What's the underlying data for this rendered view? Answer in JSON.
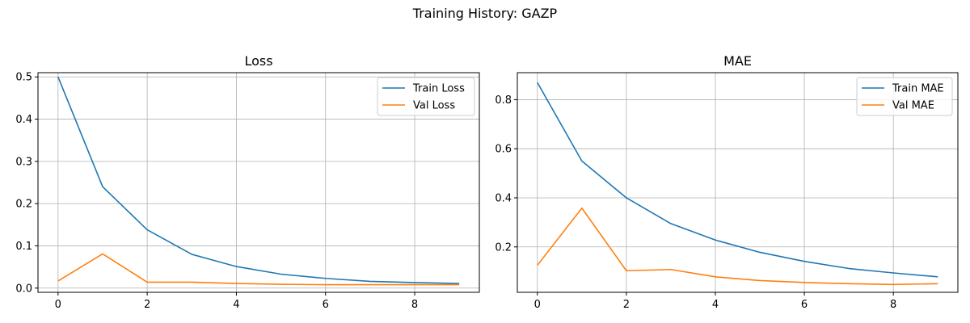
{
  "figure": {
    "suptitle": "Training History: GAZP"
  },
  "chart_data": [
    {
      "type": "line",
      "title": "Loss",
      "xlabel": "",
      "ylabel": "",
      "x": [
        0,
        1,
        2,
        3,
        4,
        5,
        6,
        7,
        8,
        9
      ],
      "xlim": [
        -0.45,
        9.45
      ],
      "ylim": [
        -0.01,
        0.51
      ],
      "xticks": [
        0,
        2,
        4,
        6,
        8
      ],
      "yticks": [
        0.0,
        0.1,
        0.2,
        0.3,
        0.4,
        0.5
      ],
      "ytick_labels": [
        "0.0",
        "0.1",
        "0.2",
        "0.3",
        "0.4",
        "0.5"
      ],
      "grid": true,
      "legend_position": "top-right",
      "series": [
        {
          "name": "Train Loss",
          "color": "#1f77b4",
          "values": [
            0.5,
            0.24,
            0.138,
            0.08,
            0.051,
            0.033,
            0.023,
            0.016,
            0.013,
            0.011
          ]
        },
        {
          "name": "Val Loss",
          "color": "#ff7f0e",
          "values": [
            0.017,
            0.081,
            0.014,
            0.014,
            0.011,
            0.009,
            0.008,
            0.008,
            0.008,
            0.008
          ]
        }
      ]
    },
    {
      "type": "line",
      "title": "MAE",
      "xlabel": "",
      "ylabel": "",
      "x": [
        0,
        1,
        2,
        3,
        4,
        5,
        6,
        7,
        8,
        9
      ],
      "xlim": [
        -0.45,
        9.45
      ],
      "ylim": [
        0.015,
        0.91
      ],
      "xticks": [
        0,
        2,
        4,
        6,
        8
      ],
      "yticks": [
        0.2,
        0.4,
        0.6,
        0.8
      ],
      "ytick_labels": [
        "0.2",
        "0.4",
        "0.6",
        "0.8"
      ],
      "grid": true,
      "legend_position": "top-right",
      "series": [
        {
          "name": "Train MAE",
          "color": "#1f77b4",
          "values": [
            0.87,
            0.55,
            0.4,
            0.295,
            0.228,
            0.178,
            0.141,
            0.112,
            0.094,
            0.078
          ]
        },
        {
          "name": "Val MAE",
          "color": "#ff7f0e",
          "values": [
            0.125,
            0.358,
            0.103,
            0.108,
            0.078,
            0.063,
            0.055,
            0.05,
            0.047,
            0.05
          ]
        }
      ]
    }
  ]
}
